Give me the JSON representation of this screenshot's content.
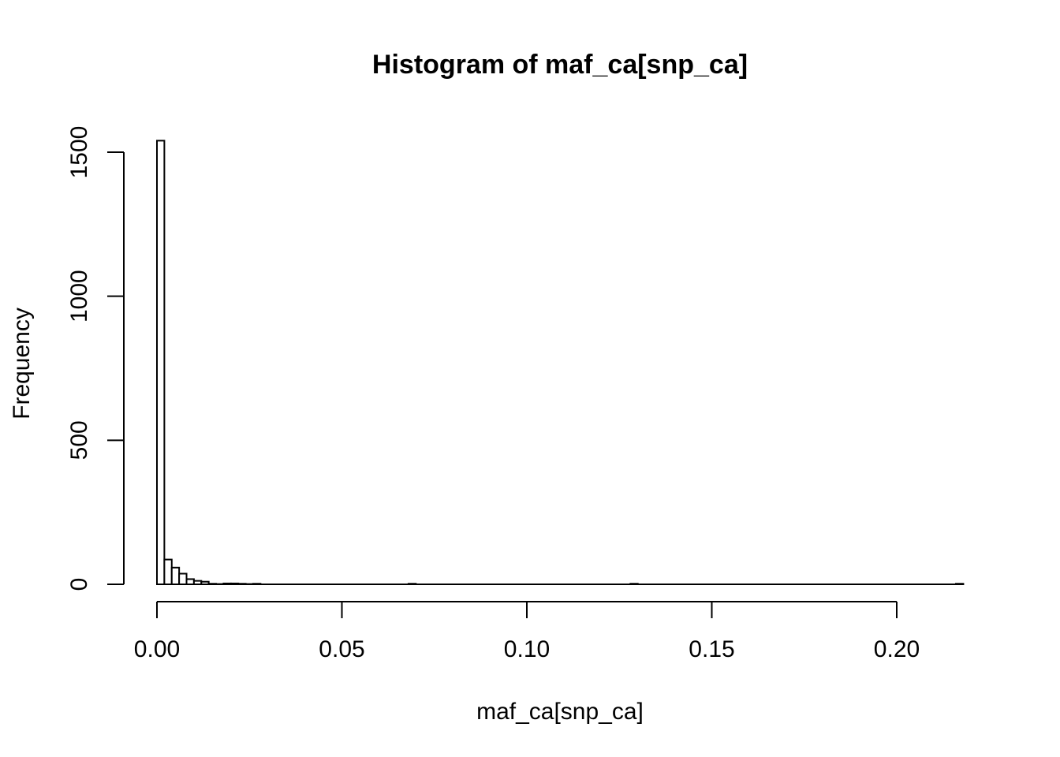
{
  "chart_data": {
    "type": "bar",
    "title": "Histogram of maf_ca[snp_ca]",
    "xlabel": "maf_ca[snp_ca]",
    "ylabel": "Frequency",
    "xlim": [
      0,
      0.22
    ],
    "ylim": [
      0,
      1540
    ],
    "bin_width": 0.002,
    "x_ticks": [
      "0.00",
      "0.05",
      "0.10",
      "0.15",
      "0.20"
    ],
    "x_tick_values": [
      0,
      0.05,
      0.1,
      0.15,
      0.2
    ],
    "y_ticks": [
      "0",
      "500",
      "1000",
      "1500"
    ],
    "y_tick_values": [
      0,
      500,
      1000,
      1500
    ],
    "grid": false,
    "legend": "none",
    "bins": [
      {
        "x0": 0.0,
        "x1": 0.002,
        "count": 1540
      },
      {
        "x0": 0.002,
        "x1": 0.004,
        "count": 86
      },
      {
        "x0": 0.004,
        "x1": 0.006,
        "count": 58
      },
      {
        "x0": 0.006,
        "x1": 0.008,
        "count": 37
      },
      {
        "x0": 0.008,
        "x1": 0.01,
        "count": 18
      },
      {
        "x0": 0.01,
        "x1": 0.012,
        "count": 12
      },
      {
        "x0": 0.012,
        "x1": 0.014,
        "count": 9
      },
      {
        "x0": 0.014,
        "x1": 0.016,
        "count": 2
      },
      {
        "x0": 0.016,
        "x1": 0.018,
        "count": 1
      },
      {
        "x0": 0.018,
        "x1": 0.02,
        "count": 3
      },
      {
        "x0": 0.02,
        "x1": 0.022,
        "count": 3
      },
      {
        "x0": 0.022,
        "x1": 0.024,
        "count": 2
      },
      {
        "x0": 0.024,
        "x1": 0.026,
        "count": 1
      },
      {
        "x0": 0.026,
        "x1": 0.028,
        "count": 2
      },
      {
        "x0": 0.068,
        "x1": 0.07,
        "count": 2
      },
      {
        "x0": 0.128,
        "x1": 0.13,
        "count": 2
      },
      {
        "x0": 0.216,
        "x1": 0.218,
        "count": 2
      }
    ]
  }
}
